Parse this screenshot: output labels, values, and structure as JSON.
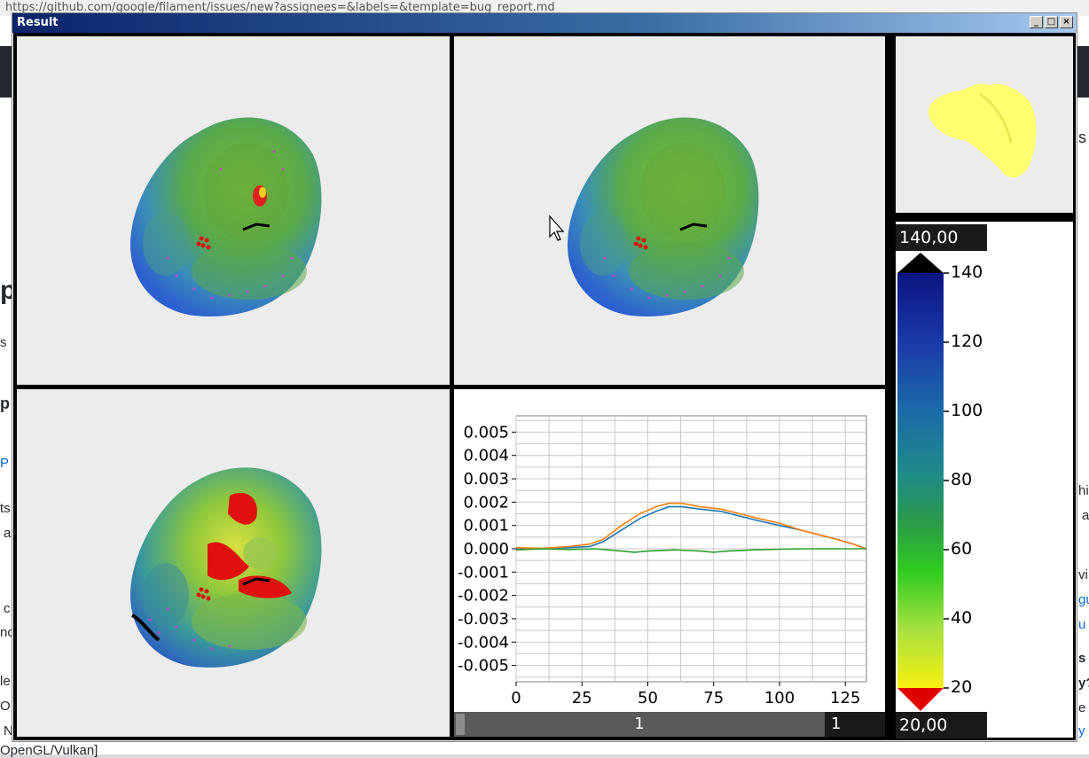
{
  "background": {
    "url_fragment": "https://github.com/google/filament/issues/new?assignees=&labels=&template=bug_report.md",
    "zoom": "133%",
    "fragments_left": [
      "p",
      "s",
      "p",
      "P",
      "ts",
      "a",
      "c",
      "nc",
      "le",
      "O",
      "N",
      "OpenGL/Vulkan]"
    ],
    "fragments_right": [
      "s",
      "hi",
      "a",
      "vi",
      "gu",
      "u",
      "s",
      "y?",
      "e",
      "y"
    ]
  },
  "window": {
    "title": "Result",
    "minimize_label": "_",
    "maximize_label": "□",
    "close_label": "×"
  },
  "colorbar": {
    "max_value": "140,00",
    "min_value": "20,00",
    "ticks": [
      "140",
      "120",
      "100",
      "80",
      "60",
      "40",
      "20"
    ],
    "over_color": "#000000",
    "under_color": "#e00000"
  },
  "slider": {
    "value_label": "1",
    "value_box": "1"
  },
  "chart_data": {
    "type": "line",
    "xlim": [
      0,
      133
    ],
    "ylim": [
      -0.0057,
      0.0057
    ],
    "xticks": [
      "0",
      "25",
      "50",
      "75",
      "100",
      "125"
    ],
    "yticks": [
      "0.005",
      "0.004",
      "0.003",
      "0.002",
      "0.001",
      "0.000",
      "-0.001",
      "-0.002",
      "-0.003",
      "-0.004",
      "-0.005"
    ],
    "grid": true,
    "series": [
      {
        "color": "#1f77b4",
        "x": [
          0,
          10,
          20,
          28,
          33,
          40,
          47,
          53,
          58,
          63,
          70,
          78,
          85,
          92,
          100,
          108,
          115,
          122,
          128,
          133
        ],
        "y": [
          0.0,
          0.0,
          5e-05,
          0.0001,
          0.0003,
          0.0008,
          0.0013,
          0.0016,
          0.0018,
          0.0018,
          0.0017,
          0.0016,
          0.0014,
          0.0012,
          0.001,
          0.0008,
          0.0006,
          0.0004,
          0.0002,
          0.0
        ]
      },
      {
        "color": "#ff7f0e",
        "x": [
          0,
          10,
          20,
          28,
          33,
          40,
          47,
          53,
          58,
          63,
          70,
          78,
          85,
          92,
          100,
          108,
          115,
          122,
          128,
          133
        ],
        "y": [
          5e-05,
          2e-05,
          0.0001,
          0.0002,
          0.0004,
          0.001,
          0.0015,
          0.0018,
          0.00195,
          0.00195,
          0.0018,
          0.0017,
          0.0015,
          0.0013,
          0.0011,
          0.0008,
          0.0006,
          0.0004,
          0.0002,
          0.0
        ]
      },
      {
        "color": "#2ca02c",
        "x": [
          0,
          10,
          20,
          30,
          40,
          45,
          50,
          60,
          70,
          75,
          80,
          90,
          100,
          110,
          120,
          133
        ],
        "y": [
          -5e-05,
          0.0,
          -3e-05,
          0.0,
          -0.0001,
          -0.00015,
          -0.0001,
          -5e-05,
          -0.0001,
          -0.00015,
          -0.0001,
          -5e-05,
          -2e-05,
          0.0,
          0.0,
          0.0
        ]
      }
    ]
  }
}
